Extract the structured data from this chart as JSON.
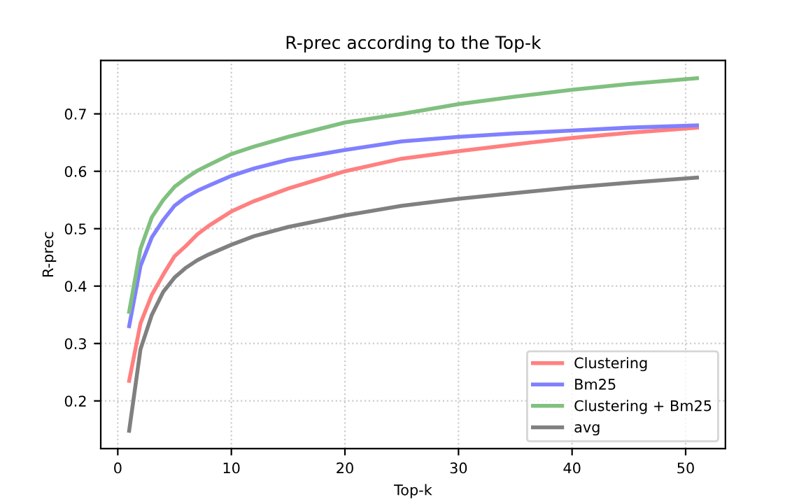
{
  "chart_data": {
    "type": "line",
    "title": "R-prec according to the Top-k",
    "xlabel": "Top-k",
    "ylabel": "R-prec",
    "x": [
      1,
      2,
      3,
      4,
      5,
      6,
      7,
      8,
      10,
      12,
      15,
      20,
      25,
      30,
      35,
      40,
      45,
      51
    ],
    "series": [
      {
        "name": "Clustering",
        "color": "#ff8080",
        "values": [
          0.235,
          0.335,
          0.385,
          0.42,
          0.452,
          0.47,
          0.49,
          0.505,
          0.53,
          0.548,
          0.57,
          0.6,
          0.622,
          0.635,
          0.647,
          0.658,
          0.667,
          0.676
        ]
      },
      {
        "name": "Bm25",
        "color": "#8080ff",
        "values": [
          0.33,
          0.435,
          0.485,
          0.515,
          0.54,
          0.555,
          0.566,
          0.575,
          0.592,
          0.605,
          0.62,
          0.637,
          0.652,
          0.66,
          0.666,
          0.671,
          0.676,
          0.68
        ]
      },
      {
        "name": "Clustering + Bm25",
        "color": "#80c080",
        "values": [
          0.355,
          0.465,
          0.52,
          0.55,
          0.573,
          0.588,
          0.601,
          0.611,
          0.63,
          0.643,
          0.66,
          0.685,
          0.7,
          0.717,
          0.73,
          0.742,
          0.752,
          0.762
        ]
      },
      {
        "name": "avg",
        "color": "#808080",
        "values": [
          0.148,
          0.29,
          0.35,
          0.39,
          0.415,
          0.432,
          0.445,
          0.455,
          0.472,
          0.487,
          0.503,
          0.523,
          0.54,
          0.552,
          0.562,
          0.572,
          0.58,
          0.589
        ]
      }
    ],
    "xlim": [
      -1.5,
      53.5
    ],
    "ylim": [
      0.117,
      0.793
    ],
    "xticks": [
      0,
      10,
      20,
      30,
      40,
      50
    ],
    "yticks": [
      {
        "value": 0.2,
        "label": "0.2"
      },
      {
        "value": 0.3,
        "label": "0.3"
      },
      {
        "value": 0.4,
        "label": "0.4"
      },
      {
        "value": 0.5,
        "label": "0.5"
      },
      {
        "value": 0.6,
        "label": "0.6"
      },
      {
        "value": 0.7,
        "label": "0.7"
      }
    ],
    "grid": true,
    "legend": "lower right",
    "line_style": "solid",
    "marker": "none"
  }
}
